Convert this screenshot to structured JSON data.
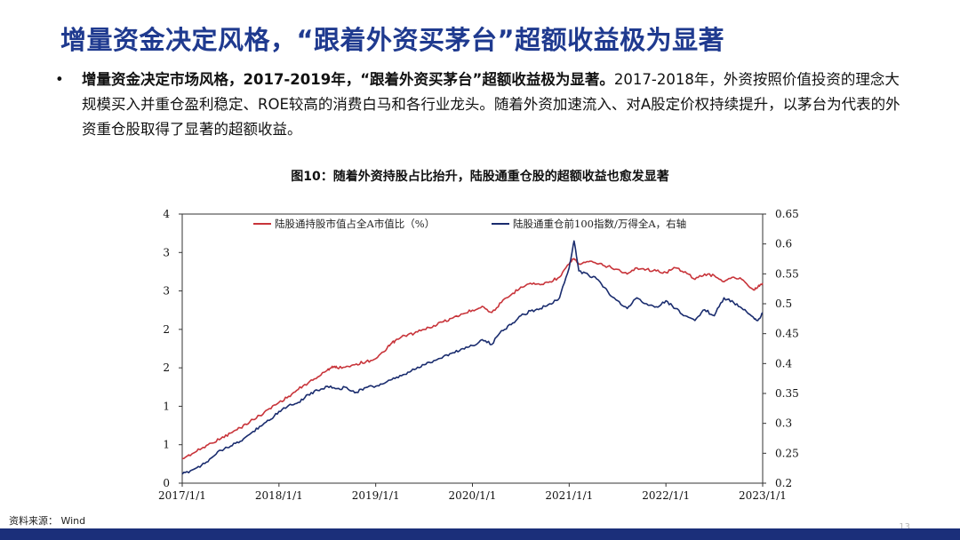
{
  "slide": {
    "title": "增量资金决定风格，“跟着外资买茅台”超额收益极为显著",
    "bullet_symbol": "•",
    "bullet_bold": "增量资金决定市场风格，2017-2019年，“跟着外资买茅台”超额收益极为显著。",
    "bullet_rest": "2017-2018年，外资按照价值投资的理念大规模买入并重仓盈利稳定、ROE较高的消费白马和各行业龙头。随着外资加速流入、对A股定价权持续提升，以茅台为代表的外资重仓股取得了显著的超额收益。",
    "figure_title": "图10：随着外资持股占比抬升，陆股通重仓股的超额收益也愈发显著",
    "source": "资料来源： Wind",
    "page_number": "13"
  },
  "colors": {
    "title": "#1f3a8f",
    "series_red": "#c8343a",
    "series_navy": "#1a2c6e",
    "footer_bar": "#1b2f7a"
  },
  "chart_data": {
    "type": "line",
    "x_ticks": [
      "2017/1/1",
      "2018/1/1",
      "2019/1/1",
      "2020/1/1",
      "2021/1/1",
      "2022/1/1",
      "2023/1/1"
    ],
    "y_left_ticks": [
      "0",
      "1",
      "1",
      "2",
      "2",
      "3",
      "3",
      "4"
    ],
    "y_left_range": [
      0,
      3.5
    ],
    "y_right_ticks": [
      "0.2",
      "0.25",
      "0.3",
      "0.35",
      "0.4",
      "0.45",
      "0.5",
      "0.55",
      "0.6",
      "0.65"
    ],
    "y_right_range": [
      0.2,
      0.65
    ],
    "x_range": [
      2017.0,
      2023.0
    ],
    "legend_position": "top",
    "series": [
      {
        "name": "陆股通持股市值占全A市值比（%）",
        "axis": "left",
        "color": "#c8343a",
        "points": [
          [
            2017.0,
            0.32
          ],
          [
            2017.1,
            0.38
          ],
          [
            2017.2,
            0.45
          ],
          [
            2017.3,
            0.52
          ],
          [
            2017.4,
            0.58
          ],
          [
            2017.5,
            0.65
          ],
          [
            2017.6,
            0.72
          ],
          [
            2017.7,
            0.8
          ],
          [
            2017.8,
            0.88
          ],
          [
            2017.9,
            0.97
          ],
          [
            2018.0,
            1.05
          ],
          [
            2018.1,
            1.13
          ],
          [
            2018.2,
            1.22
          ],
          [
            2018.3,
            1.3
          ],
          [
            2018.4,
            1.38
          ],
          [
            2018.5,
            1.47
          ],
          [
            2018.55,
            1.52
          ],
          [
            2018.6,
            1.5
          ],
          [
            2018.7,
            1.52
          ],
          [
            2018.8,
            1.55
          ],
          [
            2018.9,
            1.58
          ],
          [
            2019.0,
            1.62
          ],
          [
            2019.1,
            1.72
          ],
          [
            2019.15,
            1.8
          ],
          [
            2019.2,
            1.85
          ],
          [
            2019.3,
            1.92
          ],
          [
            2019.4,
            1.95
          ],
          [
            2019.5,
            2.0
          ],
          [
            2019.6,
            2.05
          ],
          [
            2019.7,
            2.1
          ],
          [
            2019.8,
            2.15
          ],
          [
            2019.9,
            2.2
          ],
          [
            2020.0,
            2.25
          ],
          [
            2020.1,
            2.3
          ],
          [
            2020.2,
            2.22
          ],
          [
            2020.3,
            2.35
          ],
          [
            2020.4,
            2.45
          ],
          [
            2020.5,
            2.55
          ],
          [
            2020.6,
            2.6
          ],
          [
            2020.7,
            2.58
          ],
          [
            2020.8,
            2.62
          ],
          [
            2020.9,
            2.68
          ],
          [
            2021.0,
            2.85
          ],
          [
            2021.05,
            2.92
          ],
          [
            2021.1,
            2.85
          ],
          [
            2021.2,
            2.88
          ],
          [
            2021.3,
            2.85
          ],
          [
            2021.4,
            2.82
          ],
          [
            2021.5,
            2.78
          ],
          [
            2021.6,
            2.72
          ],
          [
            2021.7,
            2.8
          ],
          [
            2021.8,
            2.78
          ],
          [
            2021.9,
            2.76
          ],
          [
            2022.0,
            2.74
          ],
          [
            2022.1,
            2.8
          ],
          [
            2022.2,
            2.75
          ],
          [
            2022.3,
            2.65
          ],
          [
            2022.4,
            2.72
          ],
          [
            2022.5,
            2.7
          ],
          [
            2022.6,
            2.62
          ],
          [
            2022.7,
            2.68
          ],
          [
            2022.8,
            2.64
          ],
          [
            2022.9,
            2.52
          ],
          [
            2022.95,
            2.55
          ],
          [
            2023.0,
            2.6
          ]
        ]
      },
      {
        "name": "陆股通重仓前100指数/万得全A，右轴",
        "axis": "right",
        "color": "#1a2c6e",
        "points": [
          [
            2017.0,
            0.215
          ],
          [
            2017.1,
            0.222
          ],
          [
            2017.2,
            0.23
          ],
          [
            2017.3,
            0.242
          ],
          [
            2017.4,
            0.255
          ],
          [
            2017.5,
            0.262
          ],
          [
            2017.6,
            0.27
          ],
          [
            2017.7,
            0.282
          ],
          [
            2017.8,
            0.295
          ],
          [
            2017.9,
            0.305
          ],
          [
            2018.0,
            0.32
          ],
          [
            2018.1,
            0.33
          ],
          [
            2018.2,
            0.335
          ],
          [
            2018.3,
            0.348
          ],
          [
            2018.4,
            0.355
          ],
          [
            2018.5,
            0.362
          ],
          [
            2018.6,
            0.358
          ],
          [
            2018.7,
            0.36
          ],
          [
            2018.8,
            0.352
          ],
          [
            2018.9,
            0.36
          ],
          [
            2019.0,
            0.362
          ],
          [
            2019.1,
            0.368
          ],
          [
            2019.2,
            0.375
          ],
          [
            2019.3,
            0.382
          ],
          [
            2019.4,
            0.39
          ],
          [
            2019.5,
            0.398
          ],
          [
            2019.6,
            0.405
          ],
          [
            2019.7,
            0.412
          ],
          [
            2019.8,
            0.418
          ],
          [
            2019.9,
            0.425
          ],
          [
            2020.0,
            0.43
          ],
          [
            2020.1,
            0.44
          ],
          [
            2020.2,
            0.432
          ],
          [
            2020.3,
            0.455
          ],
          [
            2020.4,
            0.465
          ],
          [
            2020.5,
            0.48
          ],
          [
            2020.6,
            0.488
          ],
          [
            2020.7,
            0.492
          ],
          [
            2020.8,
            0.5
          ],
          [
            2020.9,
            0.51
          ],
          [
            2021.0,
            0.56
          ],
          [
            2021.05,
            0.605
          ],
          [
            2021.1,
            0.555
          ],
          [
            2021.2,
            0.548
          ],
          [
            2021.3,
            0.54
          ],
          [
            2021.4,
            0.52
          ],
          [
            2021.5,
            0.505
          ],
          [
            2021.6,
            0.492
          ],
          [
            2021.7,
            0.51
          ],
          [
            2021.8,
            0.5
          ],
          [
            2021.9,
            0.495
          ],
          [
            2022.0,
            0.505
          ],
          [
            2022.1,
            0.492
          ],
          [
            2022.2,
            0.48
          ],
          [
            2022.3,
            0.472
          ],
          [
            2022.4,
            0.49
          ],
          [
            2022.5,
            0.48
          ],
          [
            2022.6,
            0.51
          ],
          [
            2022.7,
            0.502
          ],
          [
            2022.8,
            0.49
          ],
          [
            2022.9,
            0.478
          ],
          [
            2022.95,
            0.472
          ],
          [
            2023.0,
            0.485
          ]
        ]
      }
    ]
  }
}
